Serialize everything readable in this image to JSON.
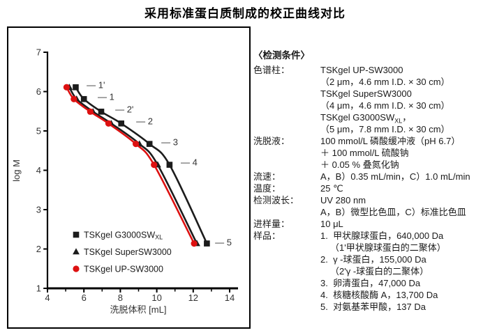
{
  "page_title": "采用标准蛋白质制成的校正曲线对比",
  "chart_data": {
    "type": "line",
    "title": "",
    "xlabel": "洗脱体积 [mL]",
    "ylabel": "log M",
    "xlim": [
      4,
      14
    ],
    "ylim": [
      1,
      7
    ],
    "xticks": [
      4,
      6,
      8,
      10,
      12,
      14
    ],
    "xticks_minor": [
      5,
      7,
      9,
      11,
      13
    ],
    "yticks": [
      1,
      2,
      3,
      4,
      5,
      6,
      7
    ],
    "grid": false,
    "legend_position": "inside-lower-left",
    "axis_color": "#000000",
    "tick_label_color": "#333333",
    "annotation_color": "#333333",
    "series": [
      {
        "name": "TSKgel G3000SWXL",
        "legend_parts": [
          {
            "t": "TSKgel G3000SW"
          },
          {
            "t": "XL",
            "sub": true
          }
        ],
        "marker": "square",
        "color": "#1c1c1c",
        "points": [
          [
            5.55,
            6.11
          ],
          [
            6.0,
            5.81
          ],
          [
            6.95,
            5.49
          ],
          [
            8.05,
            5.19
          ],
          [
            9.6,
            4.67
          ],
          [
            10.7,
            4.14
          ],
          [
            12.75,
            2.14
          ]
        ]
      },
      {
        "name": "TSKgel SuperSW3000",
        "legend_parts": [
          {
            "t": "TSKgel SuperSW3000"
          }
        ],
        "marker": "triangle",
        "color": "#1c1c1c",
        "points": [
          [
            5.2,
            6.11
          ],
          [
            5.6,
            5.81
          ],
          [
            6.5,
            5.49
          ],
          [
            7.5,
            5.19
          ],
          [
            9.05,
            4.67
          ],
          [
            10.05,
            4.14
          ],
          [
            12.2,
            2.14
          ]
        ]
      },
      {
        "name": "TSKgel UP-SW3000",
        "legend_parts": [
          {
            "t": "TSKgel UP-SW3000"
          }
        ],
        "marker": "circle",
        "color": "#dd1111",
        "points": [
          [
            5.05,
            6.11
          ],
          [
            5.45,
            5.81
          ],
          [
            6.35,
            5.49
          ],
          [
            7.35,
            5.19
          ],
          [
            8.85,
            4.67
          ],
          [
            9.85,
            4.14
          ],
          [
            12.05,
            2.14
          ]
        ]
      }
    ],
    "annotations": [
      {
        "text": "— 1'",
        "x": 6.15,
        "y": 6.17
      },
      {
        "text": "— 1",
        "x": 6.76,
        "y": 5.87
      },
      {
        "text": "— 2'",
        "x": 7.72,
        "y": 5.55
      },
      {
        "text": "— 2",
        "x": 8.87,
        "y": 5.25
      },
      {
        "text": "— 3",
        "x": 10.25,
        "y": 4.72
      },
      {
        "text": "— 4",
        "x": 11.32,
        "y": 4.2
      },
      {
        "text": "— 5",
        "x": 13.2,
        "y": 2.17
      }
    ]
  },
  "conditions": {
    "heading": "〈检测条件〉",
    "rows": [
      {
        "label": "色谱柱：",
        "lines": [
          {
            "text": "TSKgel UP-SW3000"
          },
          {
            "text": "（2 μm，4.6 mm I.D. × 30 cm）"
          },
          {
            "text": "TSKgel SuperSW3000"
          },
          {
            "text": "（4 μm，4.6 mm I.D. × 30 cm）"
          },
          {
            "parts": [
              {
                "t": "TSKgel G3000SW"
              },
              {
                "t": "XL",
                "sub": true
              },
              {
                "t": "，"
              }
            ]
          },
          {
            "text": "（5 μm，7.8 mm I.D. × 30 cm）"
          }
        ]
      },
      {
        "label": "洗脱液：",
        "lines": [
          {
            "text": "100 mmol/L 磷酸缓冲液（pH 6.7）"
          },
          {
            "text": "＋ 100 mmol/L 硫酸钠"
          },
          {
            "text": "＋ 0.05 % 叠氮化钠"
          }
        ]
      },
      {
        "label": "流速：",
        "lines": [
          {
            "text": "A，B）0.35 mL/min，C）1.0 mL/min"
          }
        ]
      },
      {
        "label": "温度：",
        "lines": [
          {
            "text": "25 ℃"
          }
        ]
      },
      {
        "label": "检测波长：",
        "lines": [
          {
            "text": "UV 280 nm"
          },
          {
            "text": "A，B）微型比色皿，C）标准比色皿"
          }
        ]
      },
      {
        "label": "进样量：",
        "lines": [
          {
            "text": "10 μL"
          }
        ]
      },
      {
        "label": "样品：",
        "lines": [
          {
            "text": "1.  甲状腺球蛋白，640,000 Da"
          },
          {
            "text": "（1'甲状腺球蛋白的二聚体）",
            "indent": true
          },
          {
            "text": "2.  γ -球蛋白，155,000 Da"
          },
          {
            "text": "（2'γ -球蛋白的二聚体）",
            "indent": true
          },
          {
            "text": "3.  卵清蛋白，47,000 Da"
          },
          {
            "text": "4.  核糖核酸酶 A，13,700 Da"
          },
          {
            "text": "5.  对氨基苯甲酸，137 Da"
          }
        ]
      }
    ]
  }
}
